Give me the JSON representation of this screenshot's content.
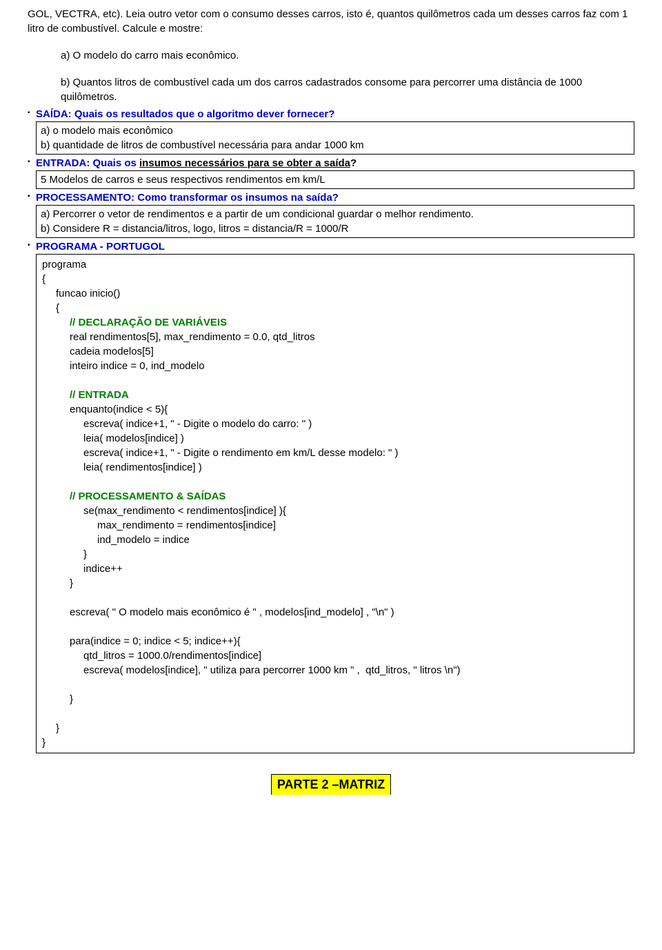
{
  "intro": {
    "line1": "GOL, VECTRA, etc). Leia outro vetor com o consumo desses carros, isto é, quantos quilômetros cada um desses carros faz com 1 litro de combustível. Calcule e mostre:",
    "item_a": "a) O modelo do carro mais econômico.",
    "item_b": "b) Quantos litros de combustível cada um dos carros cadastrados consome para percorrer uma distância de 1000 quilômetros."
  },
  "saida": {
    "heading": "SAÍDA: Quais os resultados que o algoritmo dever fornecer?",
    "box_a": "a) o modelo mais econômico",
    "box_b": "b) quantidade de litros de combustível necessária para andar 1000 km"
  },
  "entrada": {
    "heading_pre": "ENTRADA: Quais os ",
    "heading_underline": "insumos necessários para se obter a saída",
    "heading_post": "?",
    "box": "5 Modelos de carros e seus respectivos rendimentos em km/L"
  },
  "proc": {
    "heading": "PROCESSAMENTO: Como transformar os insumos na saída?",
    "box_a": "a) Percorrer o vetor de rendimentos e a partir de um condicional guardar o melhor rendimento.",
    "box_b": "b) Considere R = distancia/litros, logo, litros = distancia/R = 1000/R"
  },
  "programa": {
    "heading": "PROGRAMA - PORTUGOL"
  },
  "code": {
    "l01": "programa",
    "l02": "{",
    "l03": "funcao inicio()",
    "l04": "{",
    "l05": "// DECLARAÇÃO DE VARIÁVEIS",
    "l06": "real rendimentos[5], max_rendimento = 0.0, qtd_litros",
    "l07": "cadeia modelos[5]",
    "l08": "inteiro indice = 0, ind_modelo",
    "l09": "// ENTRADA",
    "l10": "enquanto(indice < 5){",
    "l11": "escreva( indice+1, \" - Digite o modelo do carro: \" )",
    "l12": "leia( modelos[indice] )",
    "l13": "escreva( indice+1, \" - Digite o rendimento em km/L desse modelo: \" )",
    "l14": "leia( rendimentos[indice] )",
    "l15": "// PROCESSAMENTO & SAÍDAS",
    "l16": "se(max_rendimento < rendimentos[indice] ){",
    "l17": "max_rendimento = rendimentos[indice]",
    "l18": "ind_modelo = indice",
    "l19": "}",
    "l20": "indice++",
    "l21": "}",
    "l22": "escreva( \" O modelo mais econômico é \" , modelos[ind_modelo] , \"\\n\" )",
    "l23": "para(indice = 0; indice < 5; indice++){",
    "l24": "qtd_litros = 1000.0/rendimentos[indice]",
    "l25": "escreva( modelos[indice], \" utiliza para percorrer 1000 km \" ,  qtd_litros, \" litros \\n\")",
    "l26": "}",
    "l27": "}",
    "l28": "}"
  },
  "part2": "PARTE 2 –MATRIZ",
  "colors": {
    "blue": "#0000c8",
    "green": "#008000",
    "highlight": "#ffff00",
    "text": "#000000",
    "background": "#ffffff"
  }
}
